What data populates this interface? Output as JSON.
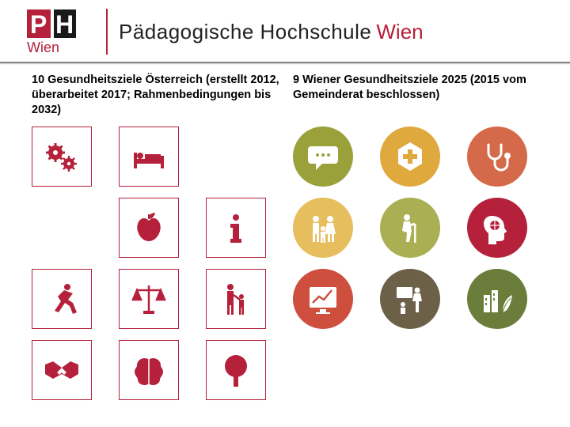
{
  "header": {
    "logo_text_1": "P",
    "logo_text_2": "H",
    "logo_city": "Wien",
    "institution_main": "Pädagogische Hochschule",
    "institution_city": "Wien",
    "logo_red": "#b5203b",
    "logo_black": "#1a1a1a"
  },
  "left_column": {
    "title": "10 Gesundheitsziele Österreich (erstellt 2012, überarbeitet 2017; Rahmenbedingungen bis 2032)",
    "tile_border": "#b5203b",
    "icon_color": "#b5203b",
    "icons": [
      "gears",
      "bed",
      "blank",
      "blank",
      "apple",
      "info",
      "runner",
      "scales",
      "parent-child",
      "handshake",
      "brain",
      "tree"
    ]
  },
  "right_column": {
    "title": "9 Wiener Gesundheitsziele 2025 (2015 vom Gemeinderat beschlossen)",
    "tiles": [
      {
        "icon": "speech",
        "bg": "#9aa13a"
      },
      {
        "icon": "cross-hex",
        "bg": "#e0a93e"
      },
      {
        "icon": "stethoscope",
        "bg": "#d46a4a"
      },
      {
        "icon": "family",
        "bg": "#e6be5e"
      },
      {
        "icon": "elderly",
        "bg": "#a9af52"
      },
      {
        "icon": "head",
        "bg": "#b5203b"
      },
      {
        "icon": "chart",
        "bg": "#cf4f3e"
      },
      {
        "icon": "teaching",
        "bg": "#6d6048"
      },
      {
        "icon": "city-leaf",
        "bg": "#6a7d3a"
      }
    ]
  }
}
